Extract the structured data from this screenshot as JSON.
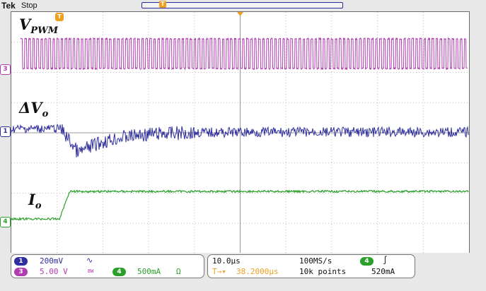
{
  "header": {
    "brand": "Tek",
    "mode": "Stop",
    "record_marker": "T"
  },
  "screen": {
    "trigger_marker": "T",
    "labels": {
      "vpwm_main": "V",
      "vpwm_sub": "PWM",
      "dvo_main": "ΔV",
      "dvo_sub": "o",
      "io_main": "I",
      "io_sub": "o"
    },
    "channel_tags": {
      "ch3": "3",
      "ch1": "1",
      "ch4": "4"
    }
  },
  "status": {
    "ch1": {
      "number": "1",
      "scale": "200mV",
      "coupling_icon": "∿"
    },
    "ch3": {
      "number": "3",
      "scale": "5.00 V",
      "bw_icon": "BW"
    },
    "ch4": {
      "number": "4",
      "scale": "500mA",
      "term_icon": "Ω"
    },
    "timebase": "10.0µs",
    "sample_rate": "100MS/s",
    "trigger_position": "38.2000µs",
    "record_length": "10k points",
    "trigger_source": "4",
    "trigger_slope_icon": "∫",
    "trigger_level": "520mA"
  },
  "colors": {
    "ch1": "#2e2e9e",
    "ch3": "#b03cb0",
    "ch4": "#2aa02a",
    "trigger": "#f0a020"
  }
}
